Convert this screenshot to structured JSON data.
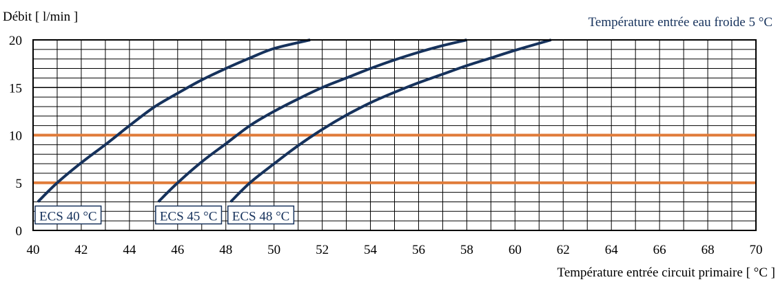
{
  "chart_data": {
    "type": "line",
    "ylabel": "Débit [ l/min ]",
    "xlabel": "Température entrée circuit primaire [ °C ]",
    "annotation": "Température entrée eau froide 5 °C",
    "xlim": [
      40,
      70
    ],
    "ylim": [
      0,
      20
    ],
    "x_ticks": [
      40,
      42,
      44,
      46,
      48,
      50,
      52,
      54,
      56,
      58,
      60,
      62,
      64,
      66,
      68,
      70
    ],
    "y_ticks": [
      0,
      5,
      10,
      15,
      20
    ],
    "grid": true,
    "colors": {
      "curve": "#16325c",
      "reference": "#e07b39",
      "grid": "#000000"
    },
    "series": [
      {
        "name": "ECS 40 °C",
        "points": [
          [
            40.2,
            3
          ],
          [
            41,
            5
          ],
          [
            42,
            7.1
          ],
          [
            43,
            9
          ],
          [
            44,
            11
          ],
          [
            45,
            12.9
          ],
          [
            46,
            14.4
          ],
          [
            47,
            15.8
          ],
          [
            48,
            17
          ],
          [
            49,
            18.1
          ],
          [
            50,
            19.1
          ],
          [
            51.5,
            20
          ]
        ]
      },
      {
        "name": "ECS 45 °C",
        "points": [
          [
            45.2,
            3
          ],
          [
            46,
            5
          ],
          [
            47,
            7.2
          ],
          [
            48,
            9.1
          ],
          [
            49,
            11
          ],
          [
            50,
            12.5
          ],
          [
            51,
            13.8
          ],
          [
            52,
            15
          ],
          [
            53,
            16
          ],
          [
            54,
            17
          ],
          [
            55,
            17.9
          ],
          [
            56,
            18.7
          ],
          [
            57,
            19.4
          ],
          [
            58,
            20
          ]
        ]
      },
      {
        "name": "ECS 48 °C",
        "points": [
          [
            48.2,
            3
          ],
          [
            49,
            5
          ],
          [
            50,
            7
          ],
          [
            51,
            8.9
          ],
          [
            52,
            10.6
          ],
          [
            53,
            12.1
          ],
          [
            54,
            13.4
          ],
          [
            55,
            14.5
          ],
          [
            56,
            15.5
          ],
          [
            57,
            16.4
          ],
          [
            58,
            17.3
          ],
          [
            59,
            18.1
          ],
          [
            60,
            18.9
          ],
          [
            61.5,
            20
          ]
        ]
      }
    ],
    "reference_lines": [
      5,
      10
    ]
  }
}
